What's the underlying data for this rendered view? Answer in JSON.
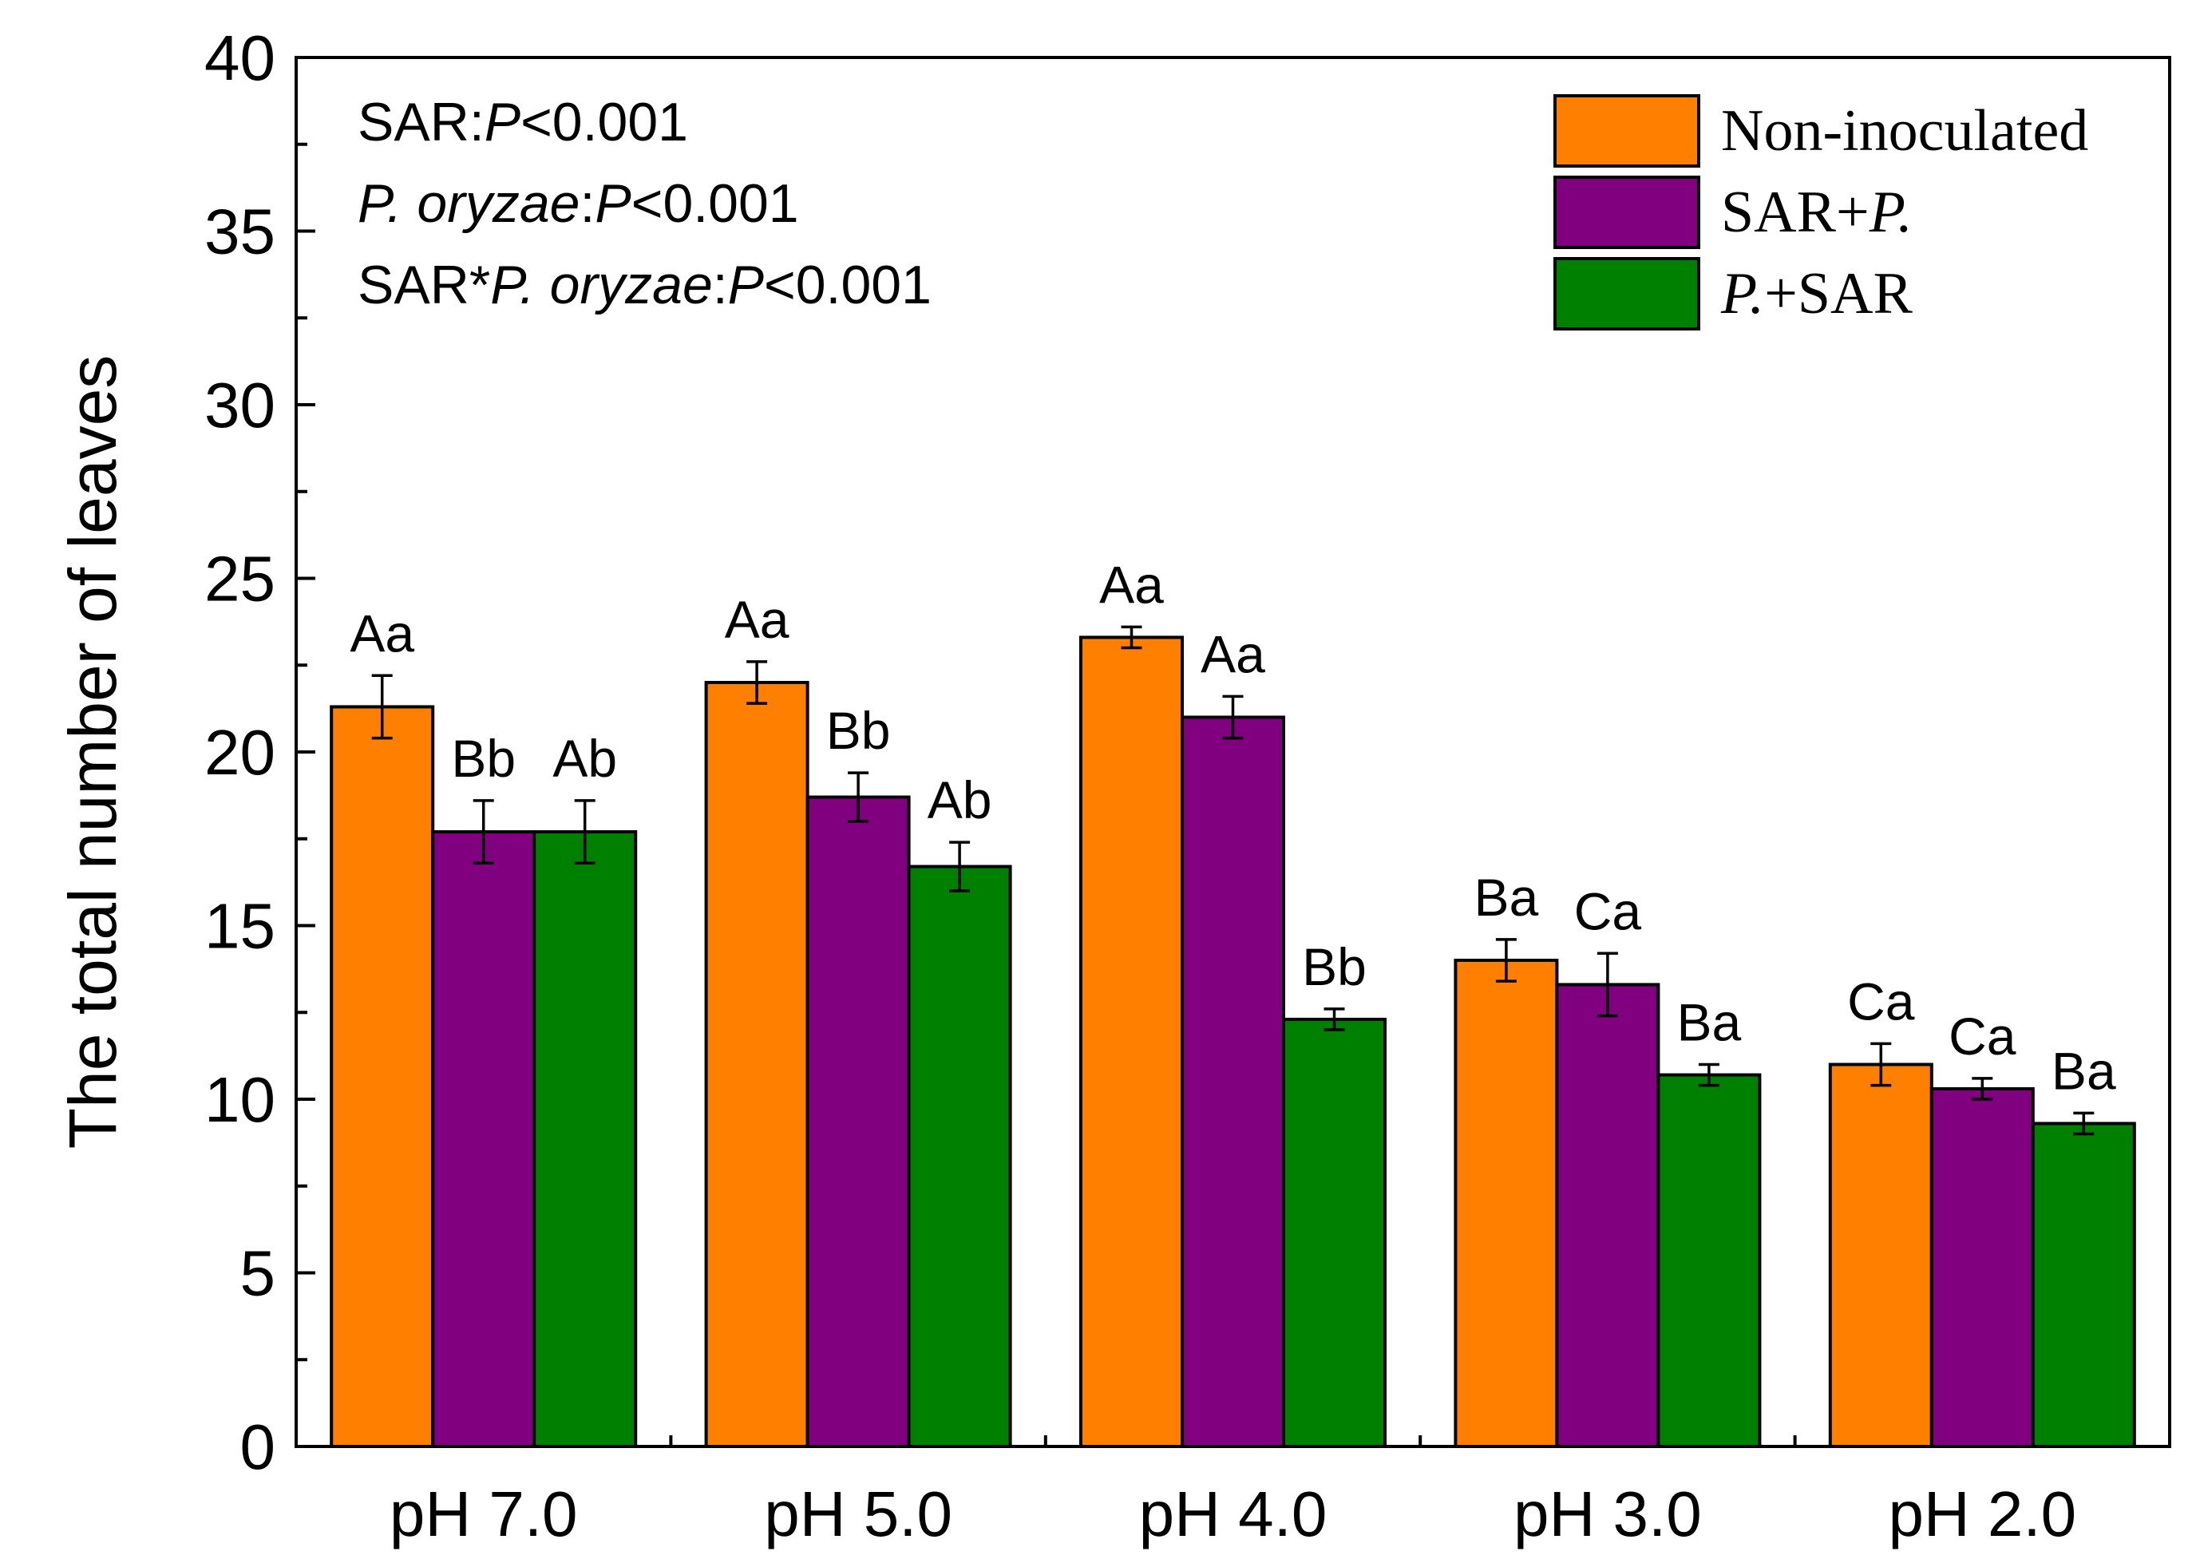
{
  "chart_data": {
    "type": "bar",
    "title": "",
    "xlabel": "",
    "ylabel": "The total number of leaves",
    "ylim": [
      0,
      40
    ],
    "yticks": [
      "0",
      "5",
      "10",
      "15",
      "20",
      "25",
      "30",
      "35",
      "40"
    ],
    "categories": [
      "pH 7.0",
      "pH 5.0",
      "pH 4.0",
      "pH 3.0",
      "pH 2.0"
    ],
    "series": [
      {
        "name": "Non-inoculated",
        "color": "#ff8000",
        "values": [
          21.3,
          22.0,
          23.3,
          14.0,
          11.0
        ],
        "errors": [
          0.9,
          0.6,
          0.3,
          0.6,
          0.6
        ],
        "labels": [
          "Aa",
          "Aa",
          "Aa",
          "Ba",
          "Ca"
        ]
      },
      {
        "name": "SAR+P.",
        "color": "#800080",
        "values": [
          17.7,
          18.7,
          21.0,
          13.3,
          10.3
        ],
        "errors": [
          0.9,
          0.7,
          0.6,
          0.9,
          0.3
        ],
        "labels": [
          "Bb",
          "Bb",
          "Aa",
          "Ca",
          "Ca"
        ]
      },
      {
        "name": "P.+SAR",
        "color": "#008000",
        "values": [
          17.7,
          16.7,
          12.3,
          10.7,
          9.3
        ],
        "errors": [
          0.9,
          0.7,
          0.3,
          0.3,
          0.3
        ],
        "labels": [
          "Ab",
          "Ab",
          "Bb",
          "Ba",
          "Ba"
        ]
      }
    ],
    "legend": {
      "placement": "top-right",
      "entries": [
        [
          {
            "t": "Non-inoculated",
            "i": false
          }
        ],
        [
          {
            "t": "SAR+",
            "i": false
          },
          {
            "t": "P.",
            "i": true
          }
        ],
        [
          {
            "t": "P.",
            "i": true
          },
          {
            "t": "+SAR",
            "i": false
          }
        ]
      ]
    },
    "annotations": [
      [
        {
          "t": "SAR:",
          "i": false
        },
        {
          "t": "P",
          "i": true
        },
        {
          "t": "<0.001",
          "i": false
        }
      ],
      [
        {
          "t": "P. oryzae",
          "i": true
        },
        {
          "t": ":",
          "i": false
        },
        {
          "t": "P",
          "i": true
        },
        {
          "t": "<0.001",
          "i": false
        }
      ],
      [
        {
          "t": "SAR*",
          "i": false
        },
        {
          "t": "P. oryzae",
          "i": true
        },
        {
          "t": ":",
          "i": false
        },
        {
          "t": "P",
          "i": true
        },
        {
          "t": "<0.001",
          "i": false
        }
      ]
    ]
  }
}
